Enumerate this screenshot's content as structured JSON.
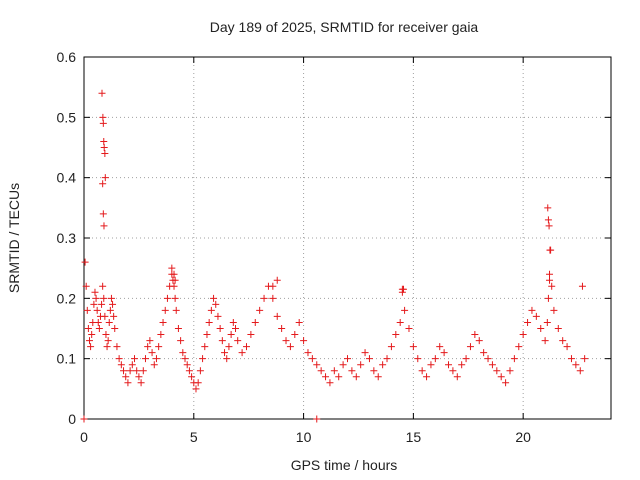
{
  "chart_data": {
    "type": "scatter",
    "title": "Day 189 of 2025, SRMTID for receiver gaia",
    "xlabel": "GPS time / hours",
    "ylabel": "SRMTID / TECUs",
    "xlim": [
      0,
      24
    ],
    "ylim": [
      0,
      0.6
    ],
    "xticks": [
      0,
      5,
      10,
      15,
      20
    ],
    "xtick_labels": [
      "0",
      "5",
      "10",
      "15",
      "20"
    ],
    "yticks": [
      0,
      0.1,
      0.2,
      0.3,
      0.4,
      0.5,
      0.6
    ],
    "ytick_labels": [
      "0",
      "0.1",
      "0.2",
      "0.3",
      "0.4",
      "0.5",
      "0.6"
    ],
    "grid": true,
    "marker": "+",
    "color": "#e41a1c",
    "series": [
      {
        "name": "SRMTID",
        "x": [
          0.05,
          0.1,
          0.15,
          0.2,
          0.25,
          0.3,
          0.35,
          0.4,
          0.45,
          0.5,
          0.55,
          0.6,
          0.65,
          0.7,
          0.75,
          0.8,
          0.85,
          0.9,
          0.95,
          1.0,
          1.05,
          1.1,
          1.15,
          1.2,
          1.25,
          1.3,
          1.35,
          1.4,
          1.5,
          1.6,
          1.7,
          1.8,
          1.9,
          2.0,
          2.1,
          2.2,
          2.3,
          2.4,
          2.5,
          2.6,
          2.7,
          2.8,
          2.9,
          3.0,
          3.1,
          3.2,
          3.3,
          3.4,
          3.5,
          3.6,
          3.7,
          3.8,
          3.9,
          4.0,
          4.05,
          4.1,
          4.15,
          4.2,
          4.3,
          4.4,
          4.5,
          4.6,
          4.7,
          4.8,
          4.9,
          5.0,
          5.1,
          5.2,
          5.3,
          5.4,
          5.5,
          5.6,
          5.7,
          5.8,
          5.9,
          6.0,
          6.1,
          6.2,
          6.3,
          6.4,
          6.5,
          6.6,
          6.7,
          6.8,
          6.9,
          7.0,
          7.2,
          7.4,
          7.6,
          7.8,
          8.0,
          8.2,
          8.4,
          8.6,
          8.8,
          9.0,
          9.2,
          9.4,
          9.6,
          9.8,
          10.0,
          10.2,
          10.4,
          10.6,
          10.8,
          11.0,
          11.2,
          11.4,
          11.6,
          11.8,
          12.0,
          12.2,
          12.4,
          12.6,
          12.8,
          13.0,
          13.2,
          13.4,
          13.6,
          13.8,
          14.0,
          14.2,
          14.4,
          14.5,
          14.6,
          14.8,
          15.0,
          15.2,
          15.4,
          15.6,
          15.8,
          16.0,
          16.2,
          16.4,
          16.6,
          16.8,
          17.0,
          17.2,
          17.4,
          17.6,
          17.8,
          18.0,
          18.2,
          18.4,
          18.6,
          18.8,
          19.0,
          19.2,
          19.4,
          19.6,
          19.8,
          20.0,
          20.2,
          20.4,
          20.6,
          20.8,
          21.0,
          21.1,
          21.15,
          21.2,
          21.25,
          21.3,
          21.4,
          21.6,
          21.8,
          22.0,
          22.2,
          22.4,
          22.6,
          22.8,
          0.82,
          0.86,
          0.88,
          0.9,
          0.92,
          0.95,
          0.97,
          0.85,
          0.88,
          0.91,
          4.0,
          4.1,
          4.15,
          8.6,
          8.8,
          14.5,
          14.55,
          21.12,
          21.15,
          21.18,
          21.22,
          21.2,
          22.7,
          0.0,
          10.6
        ],
        "y": [
          0.26,
          0.22,
          0.18,
          0.15,
          0.13,
          0.12,
          0.14,
          0.16,
          0.19,
          0.21,
          0.2,
          0.18,
          0.16,
          0.15,
          0.17,
          0.19,
          0.22,
          0.2,
          0.17,
          0.14,
          0.12,
          0.13,
          0.16,
          0.18,
          0.2,
          0.19,
          0.17,
          0.15,
          0.12,
          0.1,
          0.09,
          0.08,
          0.07,
          0.06,
          0.08,
          0.09,
          0.1,
          0.08,
          0.07,
          0.06,
          0.08,
          0.1,
          0.12,
          0.13,
          0.11,
          0.09,
          0.1,
          0.12,
          0.14,
          0.16,
          0.18,
          0.2,
          0.22,
          0.24,
          0.23,
          0.22,
          0.2,
          0.18,
          0.15,
          0.13,
          0.11,
          0.1,
          0.09,
          0.08,
          0.07,
          0.06,
          0.05,
          0.06,
          0.08,
          0.1,
          0.12,
          0.14,
          0.16,
          0.18,
          0.2,
          0.19,
          0.17,
          0.15,
          0.13,
          0.11,
          0.1,
          0.12,
          0.14,
          0.16,
          0.15,
          0.13,
          0.11,
          0.12,
          0.14,
          0.16,
          0.18,
          0.2,
          0.22,
          0.2,
          0.17,
          0.15,
          0.13,
          0.12,
          0.14,
          0.16,
          0.13,
          0.11,
          0.1,
          0.09,
          0.08,
          0.07,
          0.06,
          0.08,
          0.07,
          0.09,
          0.1,
          0.08,
          0.07,
          0.09,
          0.11,
          0.1,
          0.08,
          0.07,
          0.09,
          0.1,
          0.12,
          0.14,
          0.16,
          0.21,
          0.18,
          0.15,
          0.12,
          0.1,
          0.08,
          0.07,
          0.09,
          0.1,
          0.12,
          0.11,
          0.09,
          0.08,
          0.07,
          0.09,
          0.1,
          0.12,
          0.14,
          0.13,
          0.11,
          0.1,
          0.09,
          0.08,
          0.07,
          0.06,
          0.08,
          0.1,
          0.12,
          0.14,
          0.16,
          0.18,
          0.17,
          0.15,
          0.13,
          0.16,
          0.2,
          0.24,
          0.28,
          0.22,
          0.18,
          0.15,
          0.13,
          0.12,
          0.1,
          0.09,
          0.08,
          0.1,
          0.54,
          0.5,
          0.49,
          0.46,
          0.45,
          0.44,
          0.4,
          0.39,
          0.34,
          0.32,
          0.25,
          0.24,
          0.23,
          0.22,
          0.23,
          0.215,
          0.215,
          0.35,
          0.33,
          0.32,
          0.28,
          0.23,
          0.22,
          0.0,
          0.0
        ]
      }
    ]
  }
}
